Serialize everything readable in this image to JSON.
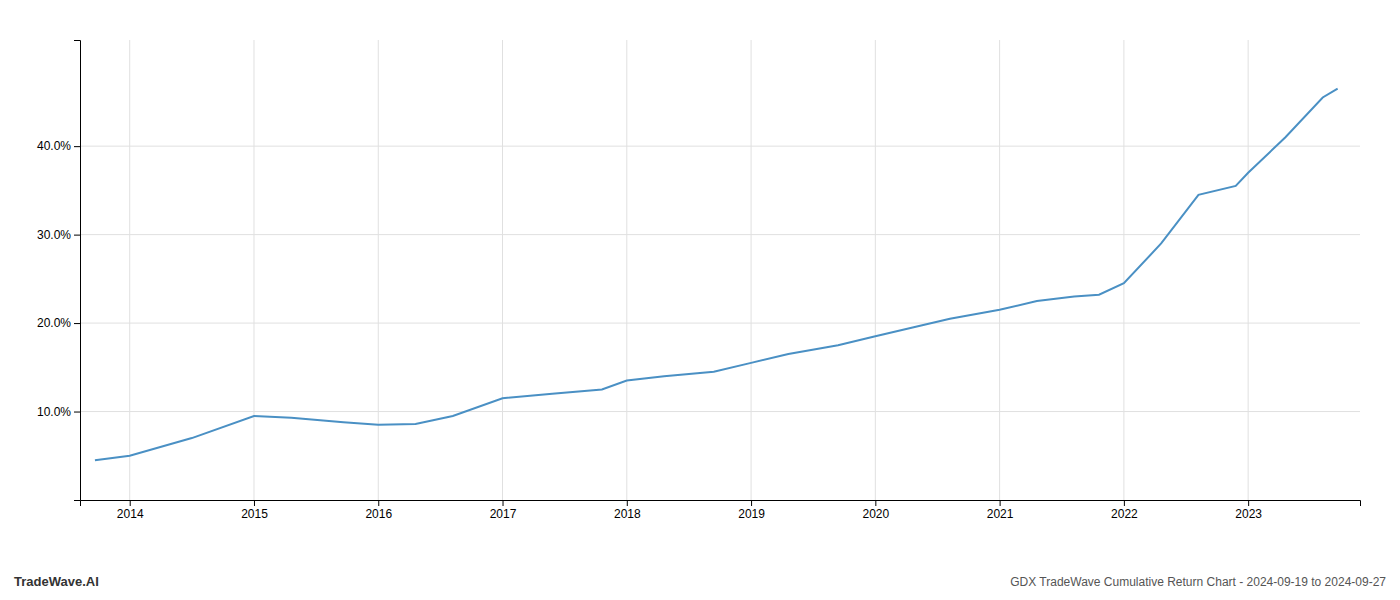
{
  "chart_data": {
    "type": "line",
    "title": "GDX TradeWave Cumulative Return Chart - 2024-09-19 to 2024-09-27",
    "annotations": [
      "TradeWave.AI"
    ],
    "x": [
      2013.72,
      2014.0,
      2014.5,
      2015.0,
      2015.3,
      2015.72,
      2016.0,
      2016.3,
      2016.6,
      2017.0,
      2017.4,
      2017.8,
      2018.0,
      2018.3,
      2018.7,
      2019.0,
      2019.3,
      2019.7,
      2020.0,
      2020.3,
      2020.6,
      2021.0,
      2021.3,
      2021.6,
      2021.8,
      2022.0,
      2022.3,
      2022.6,
      2022.9,
      2023.0,
      2023.3,
      2023.6,
      2023.72
    ],
    "values": [
      4.5,
      5.0,
      7.0,
      9.5,
      9.3,
      8.8,
      8.5,
      8.6,
      9.5,
      11.5,
      12.0,
      12.5,
      13.5,
      14.0,
      14.5,
      15.5,
      16.5,
      17.5,
      18.5,
      19.5,
      20.5,
      21.5,
      22.5,
      23.0,
      23.2,
      24.5,
      29.0,
      34.5,
      35.5,
      37.0,
      41.0,
      45.5,
      46.5
    ],
    "color": "#4a90c4",
    "xlim": [
      2013.6,
      2023.9
    ],
    "ylim": [
      0,
      52
    ],
    "xticks": [
      2014,
      2015,
      2016,
      2017,
      2018,
      2019,
      2020,
      2021,
      2022,
      2023
    ],
    "yticks": [
      {
        "value": 10.0,
        "label": "10.0%"
      },
      {
        "value": 20.0,
        "label": "20.0%"
      },
      {
        "value": 30.0,
        "label": "30.0%"
      },
      {
        "value": 40.0,
        "label": "40.0%"
      }
    ],
    "grid": true
  }
}
